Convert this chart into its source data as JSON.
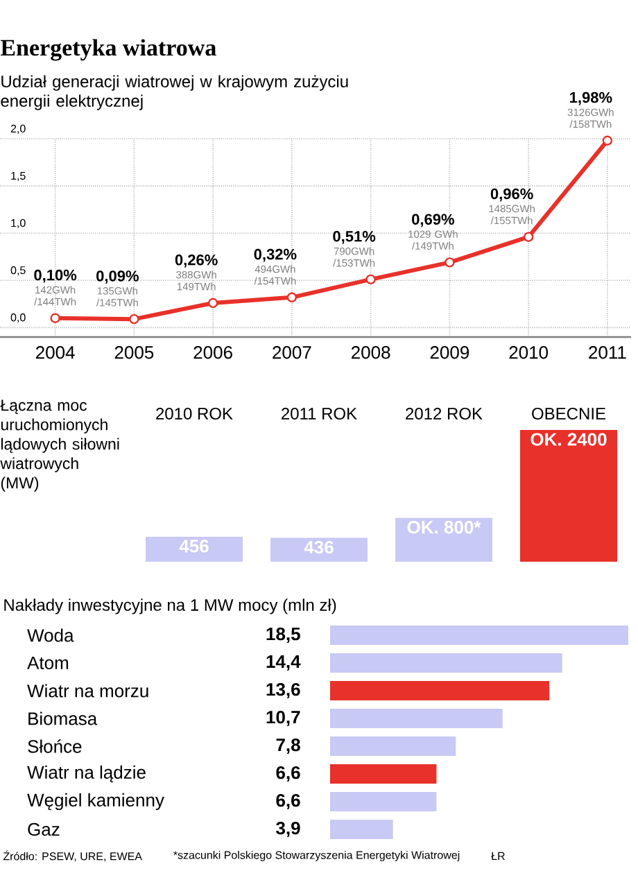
{
  "chart_data": [
    {
      "type": "line",
      "title": "Energetyka wiatrowa",
      "subtitle": "Udział generacji wiatrowej w krajowym zużyciu energii elektrycznej",
      "categories": [
        "2004",
        "2005",
        "2006",
        "2007",
        "2008",
        "2009",
        "2010",
        "2011"
      ],
      "values": [
        0.1,
        0.09,
        0.26,
        0.32,
        0.51,
        0.69,
        0.96,
        1.98
      ],
      "value_labels": [
        "0,10%",
        "0,09%",
        "0,26%",
        "0,32%",
        "0,51%",
        "0,69%",
        "0,96%",
        "1,98%"
      ],
      "color": "#e8312a",
      "marker": "circle",
      "grid": true,
      "ylim": [
        -0.1,
        2.0
      ],
      "yticks": [
        {
          "value": 0,
          "label": "0,0"
        },
        {
          "value": 0.5,
          "label": "0,5"
        },
        {
          "value": 1,
          "label": "1,0"
        },
        {
          "value": 1.5,
          "label": "1,5"
        },
        {
          "value": 2,
          "label": "2,0"
        }
      ],
      "annotations": [
        {
          "text": "142GWh /144TWh",
          "x": "2004",
          "y": 0.1
        },
        {
          "text": "135GWh /145TWh",
          "x": "2005",
          "y": 0.09
        },
        {
          "text": "388GWh 149TWh",
          "x": "2006",
          "y": 0.26
        },
        {
          "text": "494GWh /154TWh",
          "x": "2007",
          "y": 0.32
        },
        {
          "text": "790GWh /153TWh",
          "x": "2008",
          "y": 0.51
        },
        {
          "text": "1029 GWh /149TWh",
          "x": "2009",
          "y": 0.69
        },
        {
          "text": "1485GWh /155TWh",
          "x": "2010",
          "y": 0.96
        },
        {
          "text": "3126GWh /158TWh",
          "x": "2011",
          "y": 1.98
        }
      ]
    },
    {
      "type": "bar",
      "title": "Łączna moc uruchomionych lądowych siłowni wiatrowych (MW)",
      "categories": [
        "2010 ROK",
        "2011 ROK",
        "2012 ROK",
        "OBECNIE"
      ],
      "values": [
        456,
        436,
        800,
        2400
      ],
      "value_labels": [
        "456",
        "436",
        "OK. 800*",
        "OK. 2400"
      ],
      "colors": [
        "#c9c9f5",
        "#c9c9f5",
        "#c9c9f5",
        "#e8312a"
      ],
      "tick_labels": "x"
    },
    {
      "type": "bar",
      "orientation": "horizontal",
      "title": "Nakłady inwestycyjne na 1 MW mocy (mln zł)",
      "categories": [
        "Woda",
        "Atom",
        "Wiatr na morzu",
        "Biomasa",
        "Słońce",
        "Wiatr na lądzie",
        "Węgiel kamienny",
        "Gaz"
      ],
      "values": [
        18.5,
        14.4,
        13.6,
        10.7,
        7.8,
        6.6,
        6.6,
        3.9
      ],
      "value_labels": [
        "18,5",
        "14,4",
        "13,6",
        "10,7",
        "7,8",
        "6,6",
        "6,6",
        "3,9"
      ],
      "colors": [
        "#c9c9f5",
        "#c9c9f5",
        "#e8312a",
        "#c9c9f5",
        "#c9c9f5",
        "#e8312a",
        "#c9c9f5",
        "#c9c9f5"
      ],
      "tick_labels": "y",
      "annotations": [
        "Źródło: PSEW, URE, EWEA",
        "*szacunki Polskiego Stowarzyszenia Energetyki Wiatrowej",
        "ŁR"
      ]
    }
  ]
}
